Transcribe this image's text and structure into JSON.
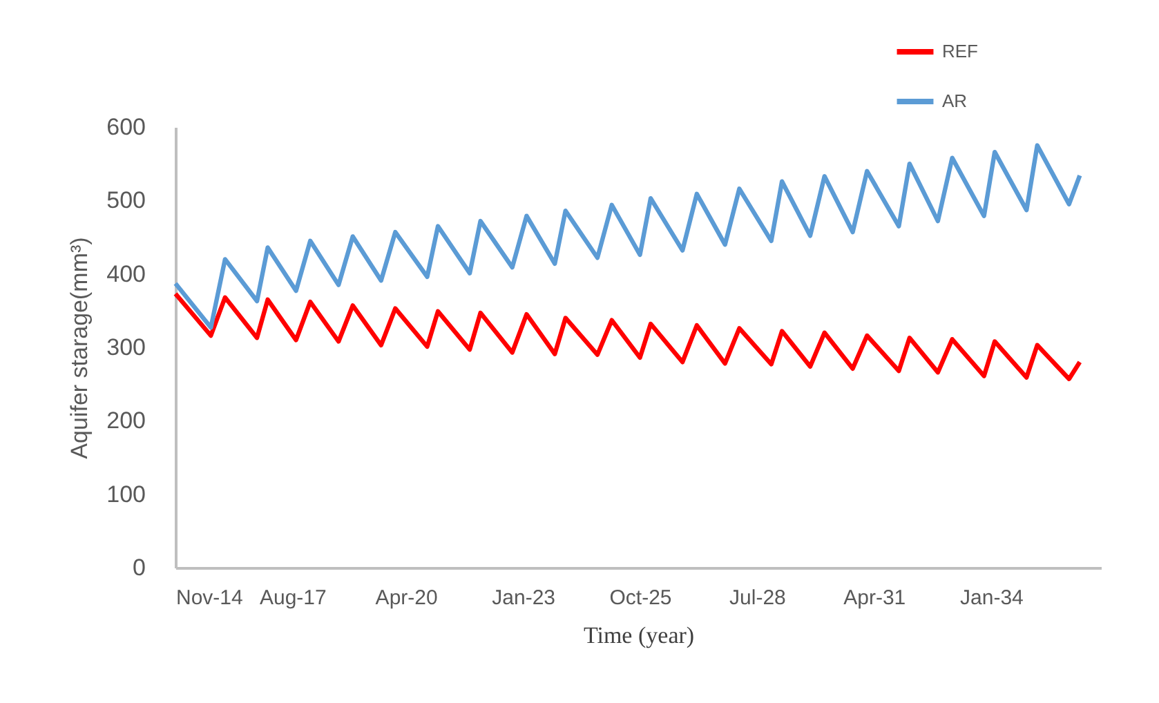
{
  "chart_data": {
    "type": "line",
    "xlabel": "Time (year)",
    "ylabel": "Aquifer starage(mm³)",
    "x": [
      "2014-11",
      "2015-09",
      "2016-01",
      "2016-10",
      "2017-01",
      "2017-09",
      "2018-01",
      "2018-09",
      "2019-01",
      "2019-09",
      "2020-01",
      "2020-10",
      "2021-01",
      "2021-10",
      "2022-01",
      "2022-10",
      "2023-02",
      "2023-10",
      "2024-01",
      "2024-10",
      "2025-02",
      "2025-10",
      "2026-01",
      "2026-10",
      "2027-02",
      "2027-10",
      "2028-02",
      "2028-11",
      "2029-02",
      "2029-10",
      "2030-02",
      "2030-10",
      "2031-02",
      "2031-11",
      "2032-02",
      "2032-10",
      "2033-02",
      "2033-11",
      "2034-02",
      "2034-11",
      "2035-02",
      "2035-11",
      "2036-02"
    ],
    "series": [
      {
        "name": "REF",
        "color": "#ff0000",
        "values": [
          373,
          316,
          368,
          313,
          365,
          310,
          362,
          308,
          357,
          303,
          353,
          301,
          349,
          297,
          347,
          293,
          345,
          291,
          340,
          290,
          337,
          286,
          332,
          280,
          330,
          278,
          326,
          277,
          322,
          274,
          320,
          271,
          316,
          268,
          313,
          266,
          311,
          261,
          308,
          259,
          303,
          257,
          280
        ]
      },
      {
        "name": "AR",
        "color": "#5b9bd5",
        "values": [
          387,
          327,
          420,
          363,
          436,
          377,
          445,
          385,
          451,
          391,
          457,
          396,
          465,
          401,
          472,
          409,
          479,
          414,
          486,
          422,
          494,
          426,
          503,
          432,
          509,
          440,
          516,
          445,
          526,
          452,
          533,
          457,
          540,
          465,
          550,
          472,
          558,
          479,
          566,
          487,
          575,
          495,
          534
        ]
      }
    ],
    "xlim": [
      "2014-11",
      "2036-08"
    ],
    "xticks": [
      {
        "value": "2014-11",
        "label": "Nov-14"
      },
      {
        "value": "2017-08",
        "label": "Aug-17"
      },
      {
        "value": "2020-04",
        "label": "Apr-20"
      },
      {
        "value": "2023-01",
        "label": "Jan-23"
      },
      {
        "value": "2025-10",
        "label": "Oct-25"
      },
      {
        "value": "2028-07",
        "label": "Jul-28"
      },
      {
        "value": "2031-04",
        "label": "Apr-31"
      },
      {
        "value": "2034-01",
        "label": "Jan-34"
      }
    ],
    "ylim": [
      0,
      600
    ],
    "yticks": [
      0,
      100,
      200,
      300,
      400,
      500,
      600
    ],
    "grid": false,
    "legend": "top right",
    "marker": "none",
    "line_style": "solid"
  }
}
